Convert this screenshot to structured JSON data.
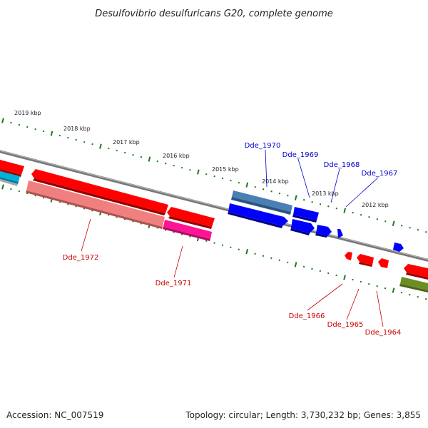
{
  "title": "Desulfovibrio desulfuricans G20, complete genome",
  "footer": {
    "accession": "Accession: NC_007519",
    "topology": "Topology: circular; Length: 3,730,232 bp; Genes: 3,855"
  },
  "kbp_labels": [
    "2019 kbp",
    "2018 kbp",
    "2017 kbp",
    "2016 kbp",
    "2015 kbp",
    "2014 kbp",
    "2013 kbp",
    "2012 kbp"
  ],
  "genes": [
    {
      "label": "Dde_1972",
      "strand": "-",
      "color": "#cc0000"
    },
    {
      "label": "Dde_1971",
      "strand": "-",
      "color": "#cc0000"
    },
    {
      "label": "Dde_1970",
      "strand": "+",
      "color": "#0000cc"
    },
    {
      "label": "Dde_1969",
      "strand": "+",
      "color": "#0000cc"
    },
    {
      "label": "Dde_1968",
      "strand": "+",
      "color": "#0000cc"
    },
    {
      "label": "Dde_1967",
      "strand": "+",
      "color": "#0000cc"
    },
    {
      "label": "Dde_1966",
      "strand": "-",
      "color": "#cc0000"
    },
    {
      "label": "Dde_1965",
      "strand": "-",
      "color": "#cc0000"
    },
    {
      "label": "Dde_1964",
      "strand": "-",
      "color": "#cc0000"
    }
  ],
  "colors": {
    "backbone": "#888888",
    "tick": "#1a7a1a",
    "forward": "#0000ff",
    "reverse": "#ff0000",
    "forward_label": "#0000cc",
    "reverse_label": "#cc0000"
  }
}
